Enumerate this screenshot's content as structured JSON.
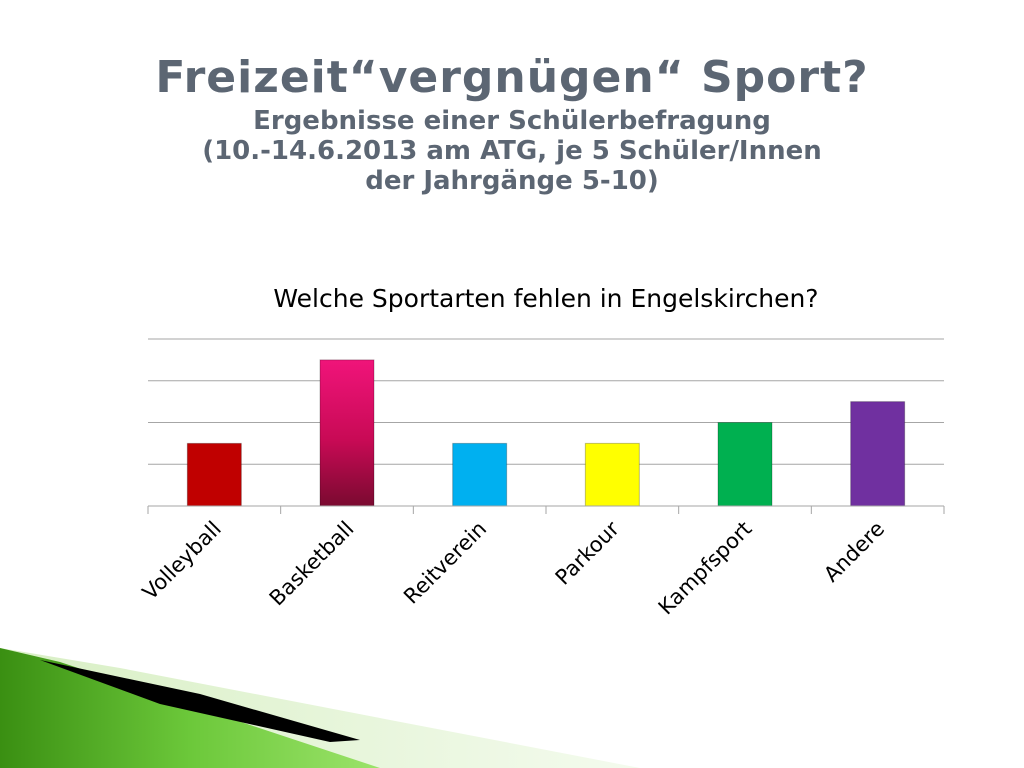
{
  "slide": {
    "title": "Freizeit“vergnügen“ Sport?",
    "subtitle_lines": [
      "Ergebnisse einer Schülerbefragung",
      "(10.-14.6.2013 am ATG, je 5 Schüler/Innen",
      "der Jahrgänge 5-10)"
    ]
  },
  "chart_data": {
    "type": "bar",
    "title": "Welche Sportarten fehlen in Engelskirchen?",
    "categories": [
      "Volleyball",
      "Basketball",
      "Reitverein",
      "Parkour",
      "Kampfsport",
      "Andere"
    ],
    "values": [
      1.5,
      3.5,
      1.5,
      1.5,
      2,
      2.5
    ],
    "colors": [
      "#c00000",
      "#e0115f",
      "#00b0f0",
      "#ffff00",
      "#00b050",
      "#7030a0"
    ],
    "ylim": [
      0,
      4
    ],
    "grid": true,
    "legend": "none"
  }
}
